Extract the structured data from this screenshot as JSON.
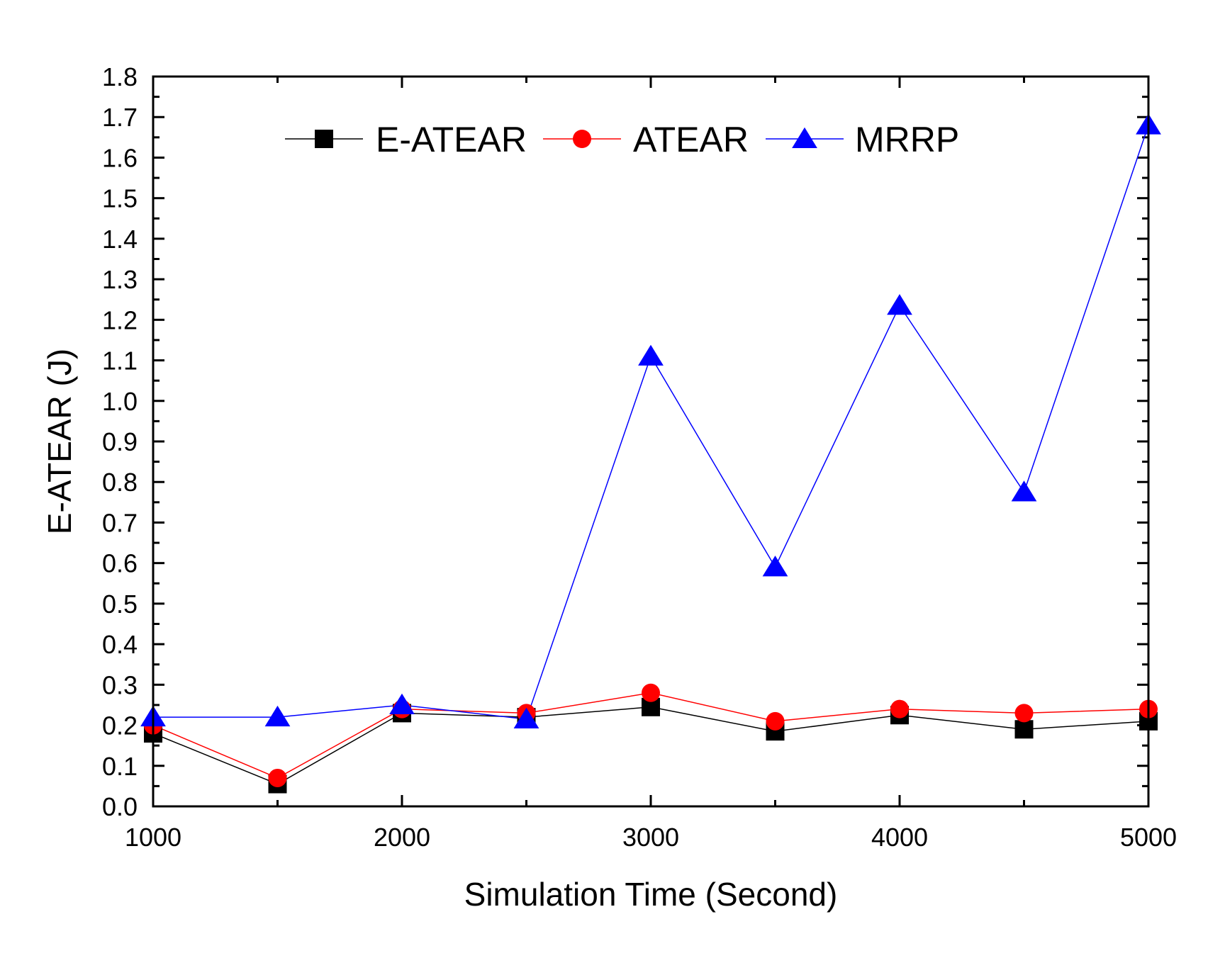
{
  "chart_data": {
    "type": "line",
    "title": "",
    "xlabel": "Simulation Time (Second)",
    "ylabel": "E-ATEAR (J)",
    "xlim": [
      1000,
      5000
    ],
    "ylim": [
      0.0,
      1.8
    ],
    "x": [
      1000,
      1500,
      2000,
      2500,
      3000,
      3500,
      4000,
      4500,
      5000
    ],
    "x_ticks": [
      1000,
      2000,
      3000,
      4000,
      5000
    ],
    "x_tick_labels": [
      "1000",
      "2000",
      "3000",
      "4000",
      "5000"
    ],
    "y_ticks": [
      0.0,
      0.1,
      0.2,
      0.3,
      0.4,
      0.5,
      0.6,
      0.7,
      0.8,
      0.9,
      1.0,
      1.1,
      1.2,
      1.3,
      1.4,
      1.5,
      1.6,
      1.7,
      1.8
    ],
    "y_tick_labels": [
      "0.0",
      "0.1",
      "0.2",
      "0.3",
      "0.4",
      "0.5",
      "0.6",
      "0.7",
      "0.8",
      "0.9",
      "1.0",
      "1.1",
      "1.2",
      "1.3",
      "1.4",
      "1.5",
      "1.6",
      "1.7",
      "1.8"
    ],
    "grid": false,
    "legend_position": "top-center",
    "series": [
      {
        "name": "E-ATEAR",
        "color": "#000000",
        "marker": "square",
        "values": [
          0.18,
          0.055,
          0.23,
          0.22,
          0.245,
          0.185,
          0.225,
          0.19,
          0.21
        ]
      },
      {
        "name": "ATEAR",
        "color": "#ff0000",
        "marker": "circle",
        "values": [
          0.2,
          0.07,
          0.24,
          0.23,
          0.28,
          0.21,
          0.24,
          0.23,
          0.24
        ]
      },
      {
        "name": "MRRP",
        "color": "#0000ff",
        "marker": "triangle",
        "values": [
          0.22,
          0.22,
          0.25,
          0.215,
          1.11,
          0.59,
          1.235,
          0.775,
          1.68
        ]
      }
    ]
  }
}
